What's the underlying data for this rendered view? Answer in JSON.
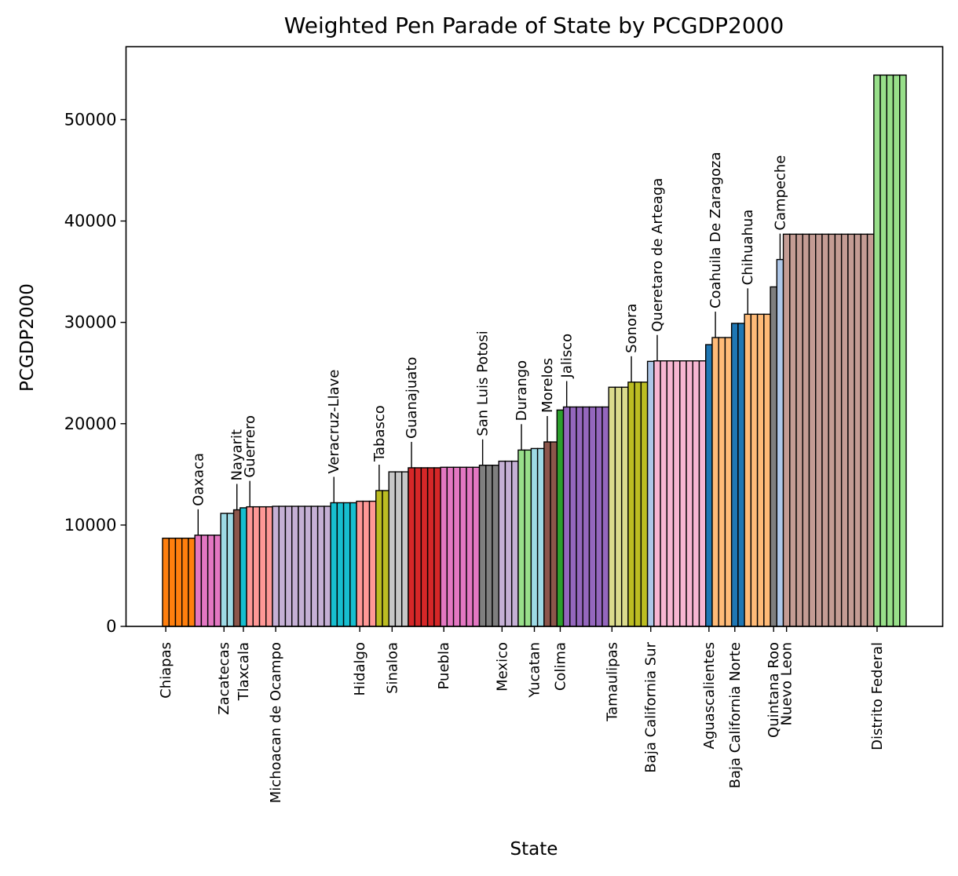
{
  "chart_data": {
    "type": "bar",
    "title": "Weighted Pen Parade of State by PCGDP2000",
    "xlabel": "State",
    "ylabel": "PCGDP2000",
    "ylim": [
      0,
      57200
    ],
    "yticks": [
      0,
      10000,
      20000,
      30000,
      40000,
      50000
    ],
    "ytick_labels": [
      "0",
      "10000",
      "20000",
      "30000",
      "40000",
      "50000"
    ],
    "states": [
      {
        "name": "Chiapas",
        "value": 8700,
        "count": 5,
        "color": "#ff7f0e",
        "label_pos": "below"
      },
      {
        "name": "Oaxaca",
        "value": 9000,
        "count": 4,
        "color": "#e377c2",
        "label_pos": "above"
      },
      {
        "name": "Zacatecas",
        "value": 11150,
        "count": 2,
        "color": "#9edae5",
        "label_pos": "below"
      },
      {
        "name": "Nayarit",
        "value": 11500,
        "count": 1,
        "color": "#8c564b",
        "label_pos": "above"
      },
      {
        "name": "Tlaxcala",
        "value": 11700,
        "count": 1,
        "color": "#17becf",
        "label_pos": "below"
      },
      {
        "name": "Guerrero",
        "value": 11800,
        "count": 4,
        "color": "#ff9896",
        "label_pos": "above"
      },
      {
        "name": "Michoacan de Ocampo",
        "value": 11850,
        "count": 9,
        "color": "#c5b0d5",
        "label_pos": "below"
      },
      {
        "name": "Veracruz-Llave",
        "value": 12200,
        "count": 4,
        "color": "#17becf",
        "label_pos": "above"
      },
      {
        "name": "Hidalgo",
        "value": 12350,
        "count": 3,
        "color": "#ff9896",
        "label_pos": "below"
      },
      {
        "name": "Tabasco",
        "value": 13400,
        "count": 2,
        "color": "#bcbd22",
        "label_pos": "above"
      },
      {
        "name": "Sinaloa",
        "value": 15250,
        "count": 3,
        "color": "#c7c7c7",
        "label_pos": "below"
      },
      {
        "name": "Guanajuato",
        "value": 15650,
        "count": 5,
        "color": "#d62728",
        "label_pos": "above"
      },
      {
        "name": "Puebla",
        "value": 15700,
        "count": 6,
        "color": "#e377c2",
        "label_pos": "below"
      },
      {
        "name": "San Luis Potosi",
        "value": 15900,
        "count": 3,
        "color": "#7f7f7f",
        "label_pos": "above"
      },
      {
        "name": "Mexico",
        "value": 16300,
        "count": 3,
        "color": "#c5b0d5",
        "label_pos": "below"
      },
      {
        "name": "Durango",
        "value": 17400,
        "count": 2,
        "color": "#98df8a",
        "label_pos": "above"
      },
      {
        "name": "Yucatan",
        "value": 17550,
        "count": 2,
        "color": "#9edae5",
        "label_pos": "below"
      },
      {
        "name": "Morelos",
        "value": 18200,
        "count": 2,
        "color": "#8c564b",
        "label_pos": "above"
      },
      {
        "name": "Colima",
        "value": 21350,
        "count": 1,
        "color": "#2ca02c",
        "label_pos": "below"
      },
      {
        "name": "Jalisco",
        "value": 21650,
        "count": 7,
        "color": "#9467bd",
        "label_pos": "above"
      },
      {
        "name": "Tamaulipas",
        "value": 23600,
        "count": 3,
        "color": "#dbdb8d",
        "label_pos": "below"
      },
      {
        "name": "Sonora",
        "value": 24100,
        "count": 3,
        "color": "#bcbd22",
        "label_pos": "above"
      },
      {
        "name": "Baja California Sur",
        "value": 26150,
        "count": 1,
        "color": "#aec7e8",
        "label_pos": "below"
      },
      {
        "name": "Queretaro de Arteaga",
        "value": 26200,
        "count": 8,
        "color": "#f7b6d2",
        "label_pos": "above"
      },
      {
        "name": "Aguascalientes",
        "value": 27800,
        "count": 1,
        "color": "#1f77b4",
        "label_pos": "below"
      },
      {
        "name": "Coahuila De Zaragoza",
        "value": 28500,
        "count": 3,
        "color": "#ffbb78",
        "label_pos": "above"
      },
      {
        "name": "Baja California Norte",
        "value": 29900,
        "count": 2,
        "color": "#1f77b4",
        "label_pos": "below"
      },
      {
        "name": "Chihuahua",
        "value": 30800,
        "count": 4,
        "color": "#ffbb78",
        "label_pos": "above"
      },
      {
        "name": "Quintana Roo",
        "value": 33500,
        "count": 1,
        "color": "#7f7f7f",
        "label_pos": "below"
      },
      {
        "name": "Campeche",
        "value": 36200,
        "count": 1,
        "color": "#aec7e8",
        "label_pos": "above"
      },
      {
        "name": "Nuevo Leon",
        "value": 38700,
        "count": 14,
        "color": "#c49c94",
        "label_pos": "below"
      },
      {
        "name": "Distrito Federal",
        "value": 54400,
        "count": 5,
        "color": "#98df8a",
        "label_pos": "below"
      }
    ]
  }
}
